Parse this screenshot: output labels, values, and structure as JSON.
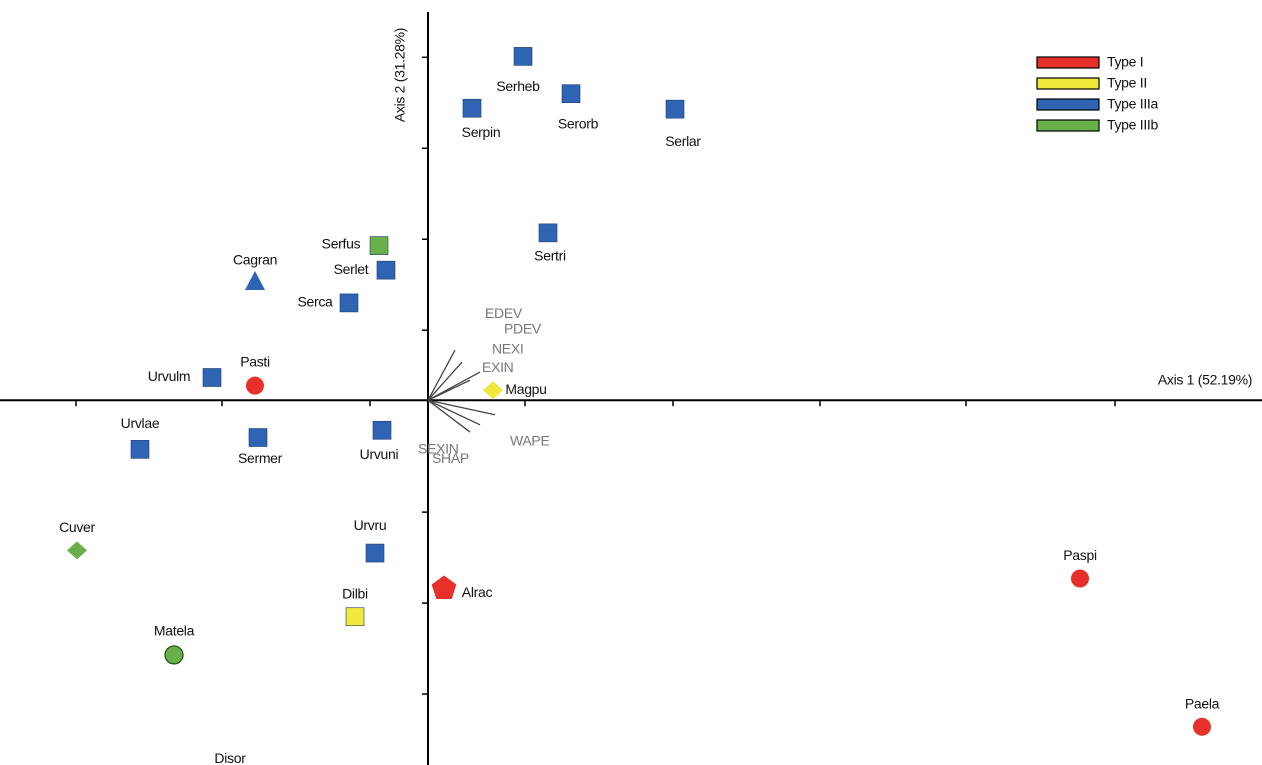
{
  "chart_data": {
    "type": "scatter",
    "x_label": "Axis 1 (52.19%)",
    "y_label": "Axis 2 (31.28%)",
    "xlim": [
      -4.28,
      8.34
    ],
    "ylim": [
      -4.01,
      4.4
    ],
    "xticks": [
      -3.52,
      -2.06,
      -0.58,
      0.97,
      2.45,
      3.92,
      5.38,
      6.87
    ],
    "yticks": [
      3.77,
      2.77,
      1.77,
      0.77,
      -1.23,
      -2.23,
      -3.23
    ],
    "legend": "upper right",
    "series": [
      {
        "name": "Type I",
        "color": "#e8302a",
        "labels": [
          "Pasti",
          "Alrac",
          "Paspi",
          "Paela"
        ],
        "markers": [
          "circle",
          "pentagon",
          "circle",
          "circle"
        ],
        "x": [
          -1.73,
          0.16,
          6.52,
          7.74
        ],
        "y": [
          0.16,
          -2.07,
          -1.96,
          -3.59
        ]
      },
      {
        "name": "Type II",
        "color": "#f0e83a",
        "labels": [
          "Magpu",
          "Dilbi"
        ],
        "markers": [
          "diamond",
          "square"
        ],
        "x": [
          0.65,
          -0.73
        ],
        "y": [
          0.11,
          -2.38
        ]
      },
      {
        "name": "Type IIIa",
        "color": "#2f64b5",
        "labels": [
          "Serheb",
          "Serpin",
          "Serorb",
          "Serlar",
          "Sertri",
          "Serlet",
          "Serca",
          "Cagran",
          "Urvulm",
          "Urvlae",
          "Sermer",
          "Urvuni",
          "Urvru",
          "Disor"
        ],
        "markers": [
          "square",
          "square",
          "square",
          "square",
          "square",
          "square",
          "square",
          "triangle",
          "square",
          "square",
          "square",
          "square",
          "square",
          "square"
        ],
        "x": [
          0.95,
          0.44,
          1.43,
          2.47,
          1.2,
          -0.42,
          -0.79,
          -1.73,
          -2.16,
          -2.88,
          -1.7,
          -0.46,
          -0.53,
          -1.96
        ],
        "y": [
          3.78,
          3.21,
          3.37,
          3.2,
          1.84,
          1.43,
          1.07,
          1.3,
          0.25,
          -0.54,
          -0.41,
          -0.33,
          -1.68,
          -4.22
        ]
      },
      {
        "name": "Type IIIb",
        "color": "#6ab04a",
        "labels": [
          "Serfus",
          "Cuver",
          "Matela"
        ],
        "markers": [
          "square",
          "diamond",
          "circle"
        ],
        "x": [
          -0.49,
          -3.51,
          -2.54
        ],
        "y": [
          1.7,
          -1.65,
          -2.8
        ]
      }
    ],
    "vectors": [
      {
        "name": "EDEV",
        "x": 0.27,
        "y": 0.55
      },
      {
        "name": "PDEV",
        "x": 0.34,
        "y": 0.42
      },
      {
        "name": "NEXI",
        "x": 0.52,
        "y": 0.31
      },
      {
        "name": "EXIN",
        "x": 0.42,
        "y": 0.22
      },
      {
        "name": "WAPE",
        "x": 0.67,
        "y": -0.16
      },
      {
        "name": "SEXIN",
        "x": 0.52,
        "y": -0.27
      },
      {
        "name": "SHAP",
        "x": 0.42,
        "y": -0.35
      }
    ]
  }
}
